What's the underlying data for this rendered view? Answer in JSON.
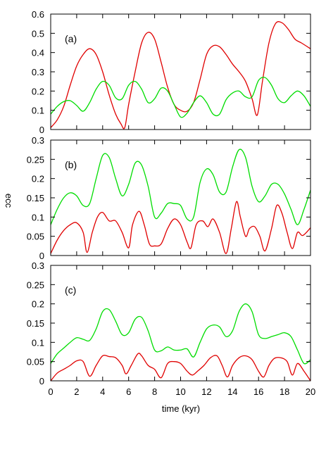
{
  "colors": {
    "red": "#e00000",
    "green": "#00dd00",
    "axis": "#000000"
  },
  "labels": {
    "xlabel": "time (kyr)",
    "ylabel": "ecc"
  },
  "chart_data": [
    {
      "type": "line",
      "panel_label": "(a)",
      "xlim": [
        0,
        20
      ],
      "ylim": [
        0,
        0.6
      ],
      "yticks": [
        "0",
        "0.1",
        "0.2",
        "0.3",
        "0.4",
        "0.5",
        "0.6"
      ],
      "xticks": [],
      "series": [
        {
          "color": "red",
          "x": [
            0,
            0.5,
            1,
            1.5,
            2,
            2.5,
            3,
            3.5,
            4,
            4.5,
            5,
            5.4,
            5.7,
            6,
            6.5,
            7,
            7.5,
            8,
            8.5,
            9,
            9.5,
            10,
            10.5,
            11,
            11.5,
            12,
            12.5,
            13,
            13.5,
            14,
            14.5,
            15,
            15.5,
            15.9,
            16.3,
            16.8,
            17.3,
            17.8,
            18.3,
            18.8,
            19.3,
            20
          ],
          "y": [
            0.01,
            0.05,
            0.12,
            0.23,
            0.33,
            0.39,
            0.42,
            0.39,
            0.3,
            0.18,
            0.08,
            0.03,
            0.01,
            0.13,
            0.3,
            0.45,
            0.505,
            0.47,
            0.35,
            0.22,
            0.13,
            0.1,
            0.095,
            0.14,
            0.26,
            0.39,
            0.435,
            0.43,
            0.39,
            0.34,
            0.3,
            0.25,
            0.16,
            0.075,
            0.25,
            0.45,
            0.55,
            0.555,
            0.52,
            0.47,
            0.45,
            0.42
          ]
        },
        {
          "color": "green",
          "x": [
            0,
            0.5,
            1,
            1.5,
            2,
            2.5,
            3,
            3.5,
            4,
            4.5,
            5,
            5.5,
            6,
            6.5,
            7,
            7.5,
            8,
            8.5,
            9,
            9.5,
            10,
            10.5,
            11,
            11.5,
            12,
            12.5,
            13,
            13.5,
            14,
            14.5,
            15,
            15.5,
            16,
            16.5,
            17,
            17.5,
            18,
            18.5,
            19,
            19.5,
            20
          ],
          "y": [
            0.08,
            0.12,
            0.145,
            0.15,
            0.125,
            0.095,
            0.14,
            0.21,
            0.25,
            0.23,
            0.165,
            0.16,
            0.23,
            0.25,
            0.21,
            0.14,
            0.16,
            0.215,
            0.2,
            0.13,
            0.065,
            0.085,
            0.14,
            0.175,
            0.14,
            0.08,
            0.08,
            0.155,
            0.19,
            0.2,
            0.17,
            0.17,
            0.255,
            0.27,
            0.23,
            0.16,
            0.14,
            0.175,
            0.2,
            0.175,
            0.12
          ]
        }
      ]
    },
    {
      "type": "line",
      "panel_label": "(b)",
      "xlim": [
        0,
        20
      ],
      "ylim": [
        0,
        0.3
      ],
      "yticks": [
        "0",
        "0.05",
        "0.1",
        "0.15",
        "0.2",
        "0.25",
        "0.3"
      ],
      "xticks": [],
      "series": [
        {
          "color": "red",
          "x": [
            0,
            0.5,
            1,
            1.5,
            2,
            2.5,
            2.8,
            3.2,
            3.6,
            4,
            4.5,
            5,
            5.5,
            6,
            6.3,
            6.8,
            7.2,
            7.6,
            8,
            8.5,
            9,
            9.5,
            10,
            10.5,
            10.8,
            11.2,
            11.7,
            12.1,
            12.5,
            13,
            13.5,
            13.9,
            14.3,
            14.6,
            15,
            15.3,
            15.7,
            16.1,
            16.5,
            17,
            17.4,
            17.8,
            18.2,
            18.6,
            19,
            19.4,
            20
          ],
          "y": [
            0.005,
            0.04,
            0.065,
            0.08,
            0.085,
            0.06,
            0.008,
            0.06,
            0.1,
            0.112,
            0.09,
            0.09,
            0.06,
            0.02,
            0.08,
            0.115,
            0.08,
            0.03,
            0.025,
            0.03,
            0.07,
            0.095,
            0.08,
            0.035,
            0.02,
            0.08,
            0.09,
            0.075,
            0.095,
            0.06,
            0.005,
            0.07,
            0.14,
            0.1,
            0.05,
            0.07,
            0.075,
            0.05,
            0.012,
            0.07,
            0.13,
            0.11,
            0.06,
            0.018,
            0.06,
            0.052,
            0.072
          ]
        },
        {
          "color": "green",
          "x": [
            0,
            0.5,
            1,
            1.5,
            2,
            2.5,
            3,
            3.5,
            4,
            4.5,
            5,
            5.5,
            6,
            6.5,
            7,
            7.5,
            8,
            8.5,
            9,
            9.5,
            10,
            10.5,
            11,
            11.5,
            12,
            12.5,
            13,
            13.5,
            14,
            14.5,
            15,
            15.5,
            16,
            16.5,
            17,
            17.5,
            18,
            18.5,
            19,
            19.5,
            20
          ],
          "y": [
            0.08,
            0.12,
            0.15,
            0.163,
            0.155,
            0.13,
            0.135,
            0.2,
            0.26,
            0.255,
            0.2,
            0.155,
            0.185,
            0.24,
            0.235,
            0.18,
            0.1,
            0.11,
            0.135,
            0.135,
            0.13,
            0.095,
            0.1,
            0.19,
            0.225,
            0.21,
            0.165,
            0.165,
            0.23,
            0.275,
            0.255,
            0.18,
            0.14,
            0.155,
            0.185,
            0.185,
            0.16,
            0.12,
            0.08,
            0.12,
            0.17
          ]
        }
      ]
    },
    {
      "type": "line",
      "panel_label": "(c)",
      "xlim": [
        0,
        20
      ],
      "ylim": [
        0,
        0.3
      ],
      "yticks": [
        "0",
        "0.05",
        "0.1",
        "0.15",
        "0.2",
        "0.25",
        "0.3"
      ],
      "xticks": [
        "0",
        "2",
        "4",
        "6",
        "8",
        "10",
        "12",
        "14",
        "16",
        "18",
        "20"
      ],
      "series": [
        {
          "color": "red",
          "x": [
            0,
            0.5,
            1,
            1.5,
            2,
            2.5,
            3,
            3.5,
            4,
            4.5,
            5,
            5.5,
            5.8,
            6.2,
            6.7,
            7,
            7.5,
            8,
            8.5,
            9,
            9.5,
            10,
            10.5,
            10.9,
            11.3,
            11.8,
            12.3,
            12.8,
            13.2,
            13.6,
            14,
            14.5,
            15,
            15.5,
            16,
            16.4,
            16.8,
            17.2,
            17.7,
            18.2,
            18.6,
            19,
            19.5,
            20
          ],
          "y": [
            0.0,
            0.02,
            0.03,
            0.04,
            0.052,
            0.05,
            0.012,
            0.04,
            0.065,
            0.063,
            0.06,
            0.04,
            0.018,
            0.04,
            0.07,
            0.065,
            0.04,
            0.03,
            0.008,
            0.045,
            0.05,
            0.045,
            0.025,
            0.015,
            0.025,
            0.04,
            0.06,
            0.065,
            0.04,
            0.01,
            0.04,
            0.06,
            0.065,
            0.055,
            0.025,
            0.01,
            0.04,
            0.058,
            0.06,
            0.05,
            0.015,
            0.045,
            0.025,
            0.0
          ]
        },
        {
          "color": "green",
          "x": [
            0,
            0.5,
            1,
            1.5,
            2,
            2.5,
            3,
            3.5,
            4,
            4.5,
            5,
            5.5,
            6,
            6.5,
            7,
            7.5,
            8,
            8.5,
            9,
            9.5,
            10,
            10.5,
            11,
            11.5,
            12,
            12.5,
            13,
            13.5,
            14,
            14.5,
            15,
            15.5,
            16,
            16.5,
            17,
            17.5,
            18,
            18.5,
            19,
            19.5,
            20
          ],
          "y": [
            0.045,
            0.07,
            0.085,
            0.1,
            0.112,
            0.108,
            0.105,
            0.135,
            0.18,
            0.185,
            0.155,
            0.12,
            0.125,
            0.16,
            0.165,
            0.13,
            0.08,
            0.078,
            0.088,
            0.08,
            0.08,
            0.083,
            0.062,
            0.1,
            0.135,
            0.145,
            0.14,
            0.115,
            0.13,
            0.18,
            0.2,
            0.18,
            0.12,
            0.11,
            0.115,
            0.12,
            0.125,
            0.115,
            0.08,
            0.045,
            0.055
          ]
        }
      ]
    }
  ]
}
